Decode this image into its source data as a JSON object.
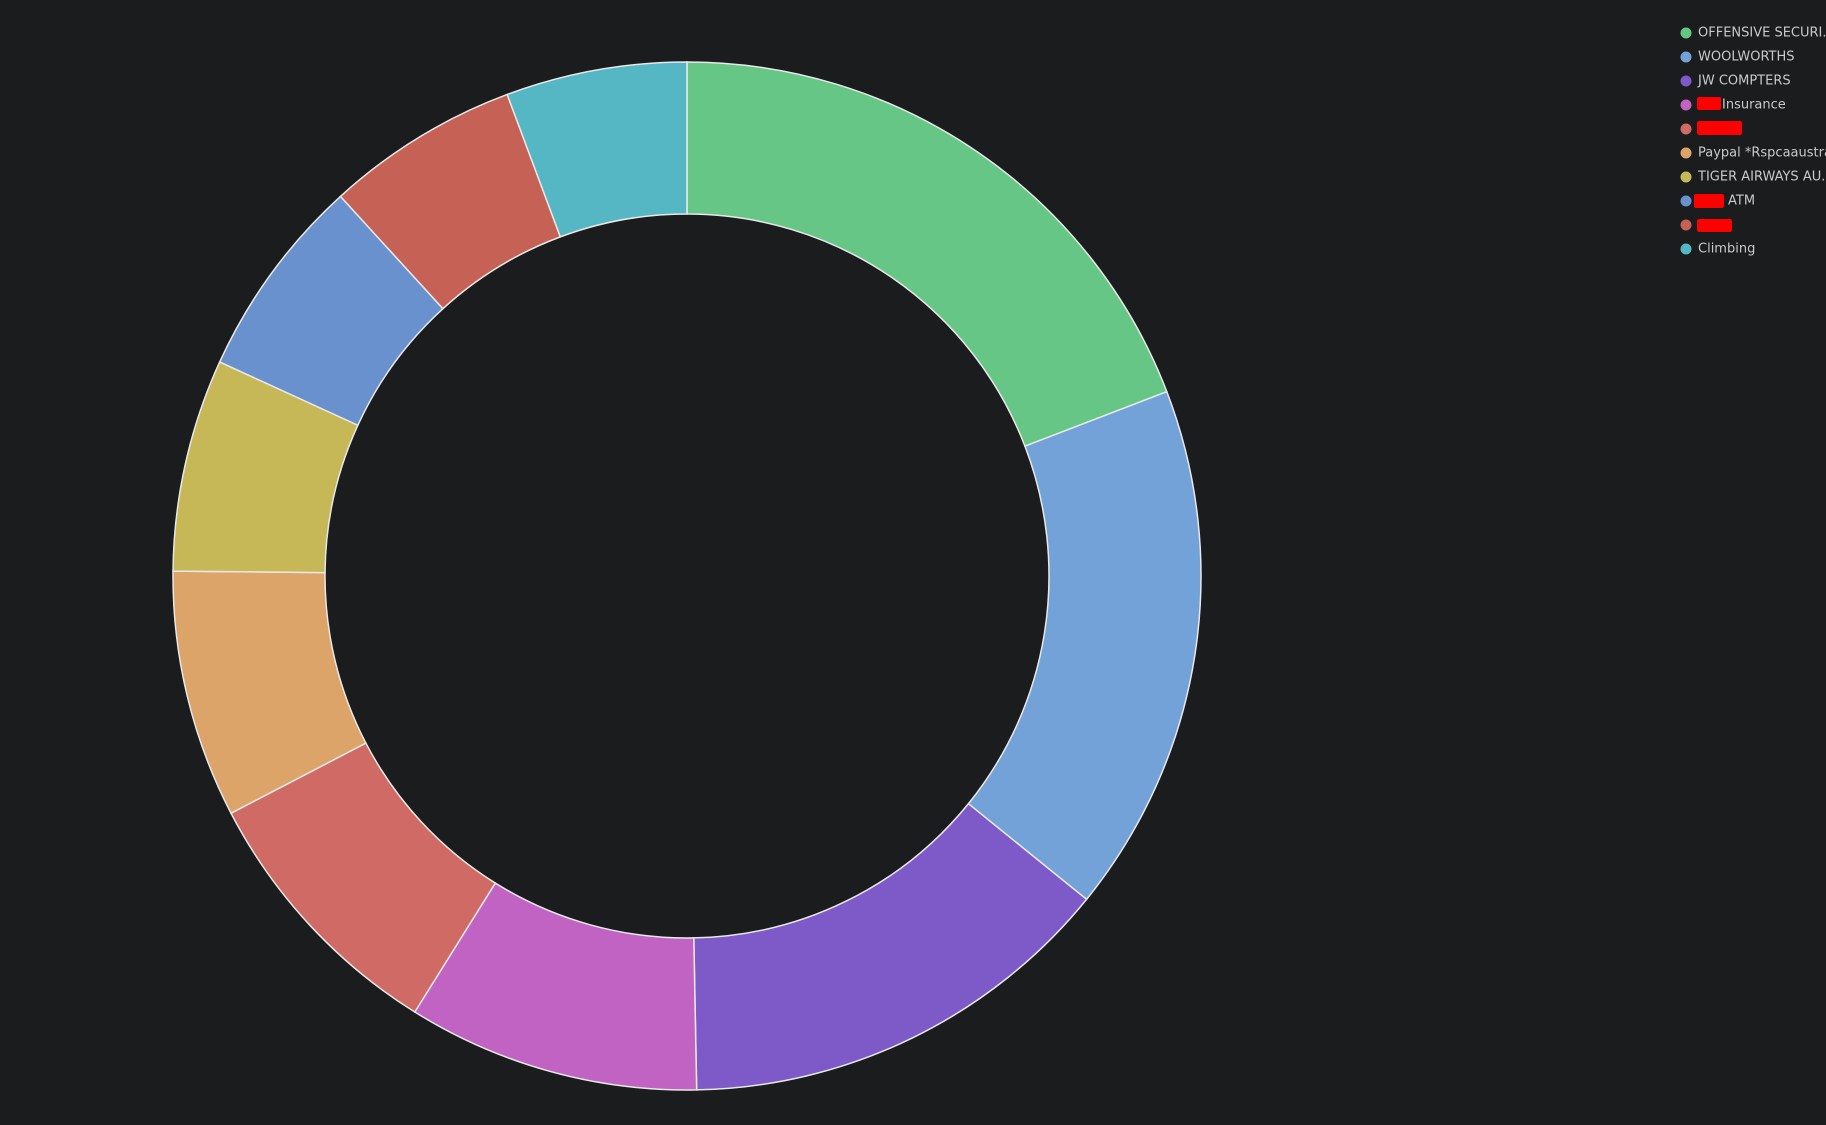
{
  "chart_data": {
    "type": "pie",
    "categories": [
      "OFFENSIVE SECURI...",
      "WOOLWORTHS",
      "JW COMPTERS",
      "Insurance",
      null,
      "Paypal *Rspcaaustra",
      "TIGER AIRWAYS AU...",
      "ATM",
      null,
      "Climbing"
    ],
    "values": [
      19.2,
      16.7,
      13.9,
      9.2,
      8.5,
      7.8,
      6.7,
      6.4,
      6.1,
      5.7
    ],
    "colors": [
      "#65c685",
      "#73a2d8",
      "#7d5ac8",
      "#c163c3",
      "#d06a65",
      "#dca468",
      "#c6b857",
      "#6891cd",
      "#c66155",
      "#55b6c4"
    ],
    "legend": "top-right"
  }
}
